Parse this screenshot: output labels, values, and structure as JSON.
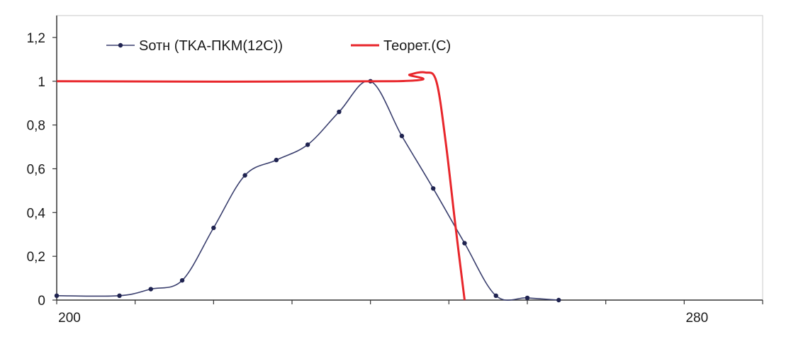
{
  "chart_data": {
    "type": "line",
    "x_tick_labels": [
      {
        "x": 200,
        "label": "200"
      },
      {
        "x": 280,
        "label": "280"
      }
    ],
    "y_tick_labels": [
      "0",
      "0,2",
      "0,4",
      "0,6",
      "0,8",
      "1",
      "1,2"
    ],
    "y_ticks": [
      0,
      0.2,
      0.4,
      0.6,
      0.8,
      1.0,
      1.2
    ],
    "xlim": [
      200,
      290
    ],
    "ylim": [
      0,
      1.3
    ],
    "grid": false,
    "legend_position": "top-left",
    "series": [
      {
        "name": "Sотн (TKA-ПKM(12C))",
        "color": "#3a3f6e",
        "marker": true,
        "points": [
          {
            "x": 200,
            "y": 0.02
          },
          {
            "x": 208,
            "y": 0.02
          },
          {
            "x": 212,
            "y": 0.05
          },
          {
            "x": 216,
            "y": 0.09
          },
          {
            "x": 220,
            "y": 0.33
          },
          {
            "x": 224,
            "y": 0.57
          },
          {
            "x": 228,
            "y": 0.64
          },
          {
            "x": 232,
            "y": 0.71
          },
          {
            "x": 236,
            "y": 0.86
          },
          {
            "x": 240,
            "y": 1.0
          },
          {
            "x": 244,
            "y": 0.75
          },
          {
            "x": 248,
            "y": 0.51
          },
          {
            "x": 252,
            "y": 0.26
          },
          {
            "x": 256,
            "y": 0.02
          },
          {
            "x": 260,
            "y": 0.01
          },
          {
            "x": 264,
            "y": 0.0
          }
        ]
      },
      {
        "name": "Теорет.(C)",
        "color": "#e8262b",
        "marker": false,
        "points": [
          {
            "x": 200,
            "y": 1.0
          },
          {
            "x": 243,
            "y": 1.0
          },
          {
            "x": 245,
            "y": 1.03
          },
          {
            "x": 247,
            "y": 1.04
          },
          {
            "x": 248.4,
            "y": 1.0
          },
          {
            "x": 249.6,
            "y": 0.72
          },
          {
            "x": 250.8,
            "y": 0.35
          },
          {
            "x": 252,
            "y": 0.0
          }
        ]
      }
    ]
  }
}
